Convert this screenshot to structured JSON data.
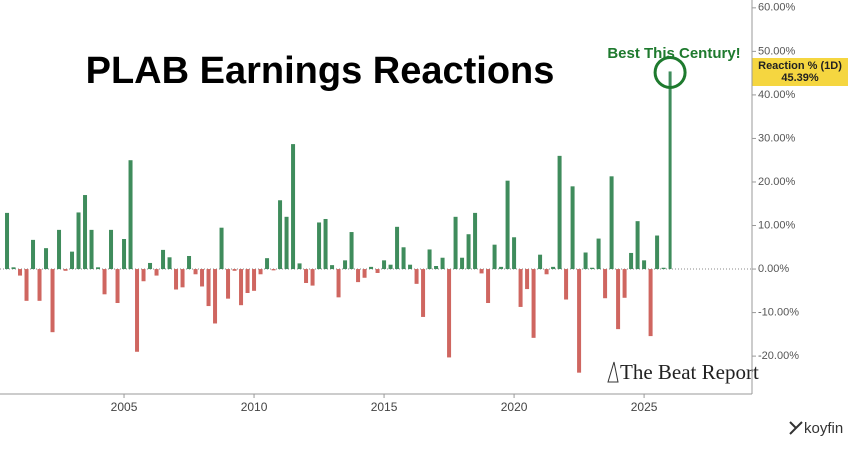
{
  "chart_data": {
    "type": "bar",
    "title": "PLAB Earnings Reactions",
    "annotation": "Best This Century!",
    "series_label": "Reaction % (1D)",
    "watermark": "The Beat Report",
    "source": "koyfin",
    "x": [
      2000.5,
      2000.75,
      2001,
      2001.25,
      2001.5,
      2001.75,
      2002,
      2002.25,
      2002.5,
      2002.75,
      2003,
      2003.25,
      2003.5,
      2003.75,
      2004,
      2004.25,
      2004.5,
      2004.75,
      2005,
      2005.25,
      2005.5,
      2005.75,
      2006,
      2006.25,
      2006.5,
      2006.75,
      2007,
      2007.25,
      2007.5,
      2007.75,
      2008,
      2008.25,
      2008.5,
      2008.75,
      2009,
      2009.25,
      2009.5,
      2009.75,
      2010,
      2010.25,
      2010.5,
      2010.75,
      2011,
      2011.25,
      2011.5,
      2011.75,
      2012,
      2012.25,
      2012.5,
      2012.75,
      2013,
      2013.25,
      2013.5,
      2013.75,
      2014,
      2014.25,
      2014.5,
      2014.75,
      2015,
      2015.25,
      2015.5,
      2015.75,
      2016,
      2016.25,
      2016.5,
      2016.75,
      2017,
      2017.25,
      2017.5,
      2017.75,
      2018,
      2018.25,
      2018.5,
      2018.75,
      2019,
      2019.25,
      2019.5,
      2019.75,
      2020,
      2020.25,
      2020.5,
      2020.75,
      2021,
      2021.25,
      2021.5,
      2021.75,
      2022,
      2022.25,
      2022.5,
      2022.75,
      2023,
      2023.25,
      2023.5,
      2023.75,
      2024,
      2024.25,
      2024.5,
      2024.75,
      2025,
      2025.25,
      2025.5,
      2025.75,
      2026
    ],
    "values": [
      12.9,
      0.4,
      -1.5,
      -7.3,
      6.7,
      -7.3,
      4.8,
      -14.5,
      9,
      -0.4,
      4,
      13,
      17,
      9,
      0.4,
      -5.8,
      9,
      -7.8,
      6.9,
      25,
      -19,
      -2.8,
      1.4,
      -1.5,
      4.4,
      2.7,
      -4.7,
      -4.2,
      3,
      -1.2,
      -4,
      -8.5,
      -12.5,
      9.5,
      -6.8,
      -0.4,
      -8.3,
      -5.5,
      -5,
      -1.2,
      2.5,
      -0.3,
      15.8,
      12,
      28.7,
      1.3,
      -3.2,
      -3.8,
      10.7,
      11.5,
      0.9,
      -6.5,
      2,
      8.5,
      -3,
      -2,
      0.5,
      -0.9,
      2,
      1,
      9.7,
      5,
      1,
      -3.4,
      -11,
      4.5,
      0.7,
      2.6,
      -20.3,
      12,
      2.6,
      8,
      12.9,
      -1,
      -7.8,
      5.6,
      0.5,
      20.3,
      7.3,
      -8.7,
      -4.6,
      -15.8,
      3.3,
      -1.2,
      0.5,
      26,
      -7,
      19,
      -23.8,
      3.8,
      0.3,
      7,
      -6.7,
      21.3,
      -13.8,
      -6.6,
      3.7,
      11,
      2,
      -15.4,
      7.7,
      0.3,
      45.39
    ],
    "value_labels": [
      null,
      null,
      null,
      null,
      null,
      null,
      null,
      null,
      null,
      null,
      null,
      null,
      null,
      null,
      null,
      null,
      null,
      null,
      null,
      null,
      null,
      null,
      null,
      null,
      null,
      null,
      null,
      null,
      null,
      null,
      null,
      null,
      null,
      null,
      null,
      null,
      null,
      null,
      null,
      null,
      null,
      null,
      null,
      null,
      null,
      null,
      null,
      null,
      null,
      null,
      null,
      null,
      null,
      null,
      null,
      null,
      null,
      null,
      null,
      null,
      null,
      null,
      null,
      null,
      null,
      null,
      null,
      null,
      null,
      null,
      null,
      null,
      null,
      null,
      null,
      null,
      null,
      null,
      null,
      null,
      null,
      null,
      null,
      null,
      null,
      null,
      null,
      null,
      null,
      null,
      null,
      null,
      null,
      null,
      null,
      null,
      null,
      null,
      null,
      null,
      null,
      null,
      "45.39%"
    ],
    "positive_color": "#3f8c5c",
    "negative_color": "#cf6660",
    "highlight_color": "#1e7a2e",
    "xlim": [
      2000.23,
      2029.15
    ],
    "xticks": [
      2005,
      2010,
      2015,
      2020,
      2025
    ],
    "ylim": [
      -28.7,
      61.8
    ],
    "yticks": [
      {
        "value": 60,
        "label": "60.00%"
      },
      {
        "value": 50,
        "label": "50.00%"
      },
      {
        "value": 40,
        "label": "40.00%"
      },
      {
        "value": 30,
        "label": "30.00%"
      },
      {
        "value": 20,
        "label": "20.00%"
      },
      {
        "value": 10,
        "label": "10.00%"
      },
      {
        "value": 0,
        "label": "0.00%"
      },
      {
        "value": -10,
        "label": "-10.00%"
      },
      {
        "value": -20,
        "label": "-20.00%"
      }
    ]
  }
}
